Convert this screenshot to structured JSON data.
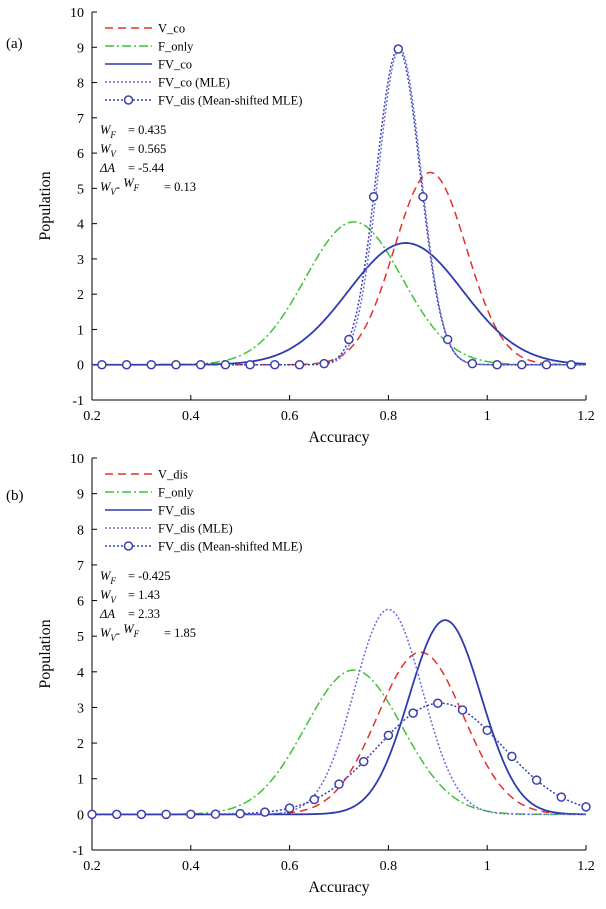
{
  "chart_data": [
    {
      "panel_label": "(a)",
      "type": "line",
      "xlabel": "Accuracy",
      "ylabel": "Population",
      "xlim": [
        0.2,
        1.2
      ],
      "ylim": [
        -1,
        10
      ],
      "xticks": [
        "0.2",
        "0.4",
        "0.6",
        "0.8",
        "1",
        "1.2"
      ],
      "yticks": [
        "-1",
        "0",
        "1",
        "2",
        "3",
        "4",
        "5",
        "6",
        "7",
        "8",
        "9",
        "10"
      ],
      "grid": false,
      "legend_position": "top-left",
      "series": [
        {
          "name": "V_co",
          "kind": "gaussian",
          "mean": 0.885,
          "sd": 0.073,
          "peak": 5.45,
          "color": "#e8302a",
          "dash": "8,5",
          "marker": false
        },
        {
          "name": "F_only",
          "kind": "gaussian",
          "mean": 0.73,
          "sd": 0.098,
          "peak": 4.05,
          "color": "#3fc23a",
          "dash": "9,3,2,3",
          "marker": false
        },
        {
          "name": "FV_co",
          "kind": "gaussian",
          "mean": 0.835,
          "sd": 0.116,
          "peak": 3.45,
          "color": "#2c3cae",
          "dash": "",
          "marker": false
        },
        {
          "name": "FV_co (MLE)",
          "kind": "gaussian",
          "mean": 0.823,
          "sd": 0.0435,
          "peak": 8.95,
          "color": "#6a6ae0",
          "dash": "2,2",
          "marker": false
        },
        {
          "name": "FV_dis (Mean-shifted MLE)",
          "kind": "gaussian",
          "mean": 0.82,
          "sd": 0.0445,
          "peak": 8.95,
          "color": "#3a3fb0",
          "dash": "2,2",
          "marker": true,
          "marker_x": [
            0.22,
            0.27,
            0.32,
            0.37,
            0.42,
            0.47,
            0.52,
            0.57,
            0.62,
            0.67,
            0.72,
            0.77,
            0.82,
            0.87,
            0.92,
            0.97,
            1.02,
            1.07,
            1.12,
            1.17
          ]
        }
      ],
      "annotations": [
        {
          "label": "W_F",
          "sub": "F",
          "value": "0.435"
        },
        {
          "label": "W_V",
          "sub": "V",
          "value": "0.565"
        },
        {
          "label": "ΔA",
          "sub": "",
          "value": "-5.44"
        },
        {
          "label": "W_V - W_F",
          "sub": "V-F",
          "value": "0.13"
        }
      ]
    },
    {
      "panel_label": "(b)",
      "type": "line",
      "xlabel": "Accuracy",
      "ylabel": "Population",
      "xlim": [
        0.2,
        1.2
      ],
      "ylim": [
        -1,
        10
      ],
      "xticks": [
        "0.2",
        "0.4",
        "0.6",
        "0.8",
        "1",
        "1.2"
      ],
      "yticks": [
        "-1",
        "0",
        "1",
        "2",
        "3",
        "4",
        "5",
        "6",
        "7",
        "8",
        "9",
        "10"
      ],
      "grid": false,
      "legend_position": "top-left",
      "series": [
        {
          "name": "V_dis",
          "kind": "gaussian",
          "mean": 0.865,
          "sd": 0.087,
          "peak": 4.55,
          "color": "#e8302a",
          "dash": "8,5",
          "marker": false
        },
        {
          "name": "F_only",
          "kind": "gaussian",
          "mean": 0.73,
          "sd": 0.098,
          "peak": 4.05,
          "color": "#3fc23a",
          "dash": "9,3,2,3",
          "marker": false
        },
        {
          "name": "FV_dis",
          "kind": "gaussian",
          "mean": 0.915,
          "sd": 0.073,
          "peak": 5.45,
          "color": "#2c3cae",
          "dash": "",
          "marker": false
        },
        {
          "name": "FV_dis (MLE)",
          "kind": "gaussian",
          "mean": 0.8,
          "sd": 0.069,
          "peak": 5.75,
          "color": "#6a6ae0",
          "dash": "2,2",
          "marker": false
        },
        {
          "name": "FV_dis (Mean-shifted MLE)",
          "kind": "gaussian",
          "mean": 0.905,
          "sd": 0.127,
          "peak": 3.12,
          "color": "#3a3fb0",
          "dash": "2,2",
          "marker": true,
          "marker_x": [
            0.2,
            0.25,
            0.3,
            0.35,
            0.4,
            0.45,
            0.5,
            0.55,
            0.6,
            0.65,
            0.7,
            0.75,
            0.8,
            0.85,
            0.9,
            0.95,
            1.0,
            1.05,
            1.1,
            1.15,
            1.2
          ]
        }
      ],
      "annotations": [
        {
          "label": "W_F",
          "sub": "F",
          "value": "-0.425"
        },
        {
          "label": "W_V",
          "sub": "V",
          "value": "1.43"
        },
        {
          "label": "ΔA",
          "sub": "",
          "value": "2.33"
        },
        {
          "label": "W_V - W_F",
          "sub": "V-F",
          "value": "1.85"
        }
      ]
    }
  ]
}
